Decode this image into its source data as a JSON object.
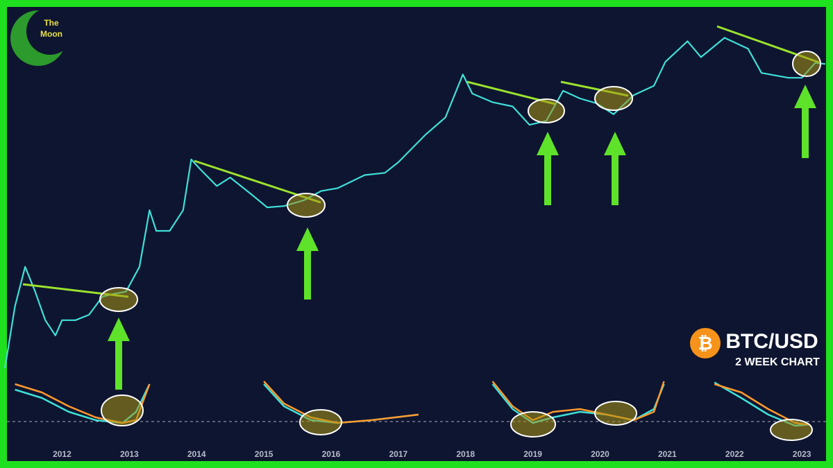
{
  "chart_data": [
    {
      "type": "line",
      "title": "BTC/USD",
      "subtitle": "2 WEEK CHART",
      "annotations": [
        "The",
        "Moon",
        "₿"
      ],
      "log_scale": true,
      "xlim": [
        2011.18,
        2023.36
      ],
      "xticks": [
        2012,
        2013,
        2014,
        2015,
        2016,
        2017,
        2018,
        2019,
        2020,
        2021,
        2022,
        2023
      ],
      "ylim": [
        0.1,
        100000
      ],
      "x": [
        2011.15,
        2011.3,
        2011.45,
        2011.6,
        2011.75,
        2011.9,
        2012.0,
        2012.2,
        2012.4,
        2012.6,
        2012.75,
        2012.95,
        2013.15,
        2013.3,
        2013.4,
        2013.6,
        2013.8,
        2013.92,
        2014.05,
        2014.3,
        2014.5,
        2014.8,
        2015.05,
        2015.3,
        2015.6,
        2015.85,
        2016.1,
        2016.5,
        2016.8,
        2017.0,
        2017.4,
        2017.7,
        2017.96,
        2018.1,
        2018.4,
        2018.7,
        2018.95,
        2019.2,
        2019.45,
        2019.7,
        2019.95,
        2020.2,
        2020.5,
        2020.8,
        2020.97,
        2021.3,
        2021.5,
        2021.85,
        2022.2,
        2022.4,
        2022.8,
        2023.0,
        2023.2,
        2023.35
      ],
      "series": [
        {
          "color": "#3fe0d8",
          "values": [
            1,
            8,
            30,
            13,
            5,
            3,
            5,
            5,
            6,
            11,
            12,
            13,
            30,
            200,
            100,
            100,
            200,
            1100,
            800,
            450,
            600,
            350,
            220,
            230,
            280,
            380,
            420,
            650,
            700,
            1000,
            2500,
            4500,
            19000,
            10000,
            7500,
            6500,
            3500,
            4000,
            11000,
            8500,
            7200,
            5000,
            9500,
            13000,
            29000,
            58000,
            34000,
            65000,
            45000,
            20000,
            17000,
            17000,
            28000,
            27000
          ]
        }
      ]
    },
    {
      "type": "line",
      "xlim": [
        2011.18,
        2023.36
      ],
      "ylim": [
        0,
        100
      ],
      "x": [
        2011.3,
        2011.7,
        2012.1,
        2012.5,
        2012.9,
        2013.1,
        2013.3,
        2014.0,
        2015.0,
        2015.3,
        2015.7,
        2016.1,
        2016.6,
        2017.3,
        2018.0,
        2018.4,
        2018.7,
        2019.0,
        2019.3,
        2019.7,
        2020.1,
        2020.5,
        2020.8,
        2020.95,
        2021.2,
        2021.7,
        2022.1,
        2022.5,
        2022.9,
        2023.1
      ],
      "series": [
        {
          "color": "#3fe0d8",
          "values": [
            85,
            70,
            45,
            30,
            25,
            45,
            95,
            null,
            95,
            55,
            30,
            25,
            30,
            40,
            null,
            95,
            50,
            25,
            35,
            45,
            40,
            30,
            50,
            95,
            null,
            98,
            70,
            40,
            20,
            22
          ]
        },
        {
          "color": "#ff9a2e",
          "values": [
            95,
            80,
            55,
            35,
            25,
            30,
            95,
            null,
            100,
            60,
            35,
            25,
            30,
            40,
            null,
            100,
            55,
            30,
            45,
            50,
            40,
            30,
            45,
            100,
            null,
            95,
            80,
            50,
            25,
            22
          ]
        }
      ]
    }
  ]
}
